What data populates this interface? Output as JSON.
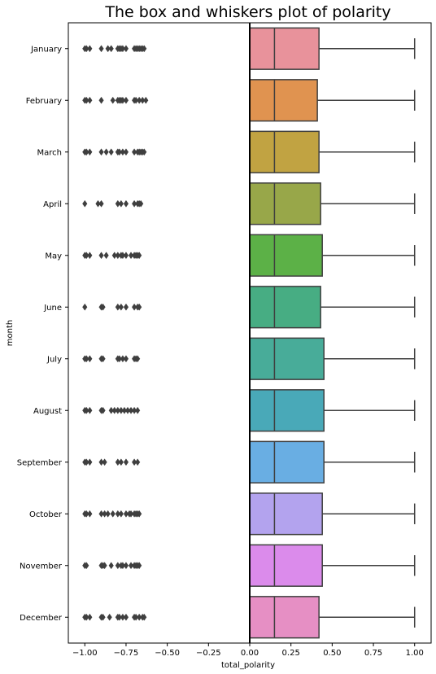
{
  "chart_data": {
    "type": "boxplot",
    "orientation": "horizontal",
    "title": "The box and whiskers plot of polarity",
    "xlabel": "total_polarity",
    "ylabel": "month",
    "xlim": [
      -1.1,
      1.1
    ],
    "x_ticks": [
      -1.0,
      -0.75,
      -0.5,
      -0.25,
      0.0,
      0.25,
      0.5,
      0.75,
      1.0
    ],
    "x_tick_labels": [
      "−1.00",
      "−0.75",
      "−0.50",
      "−0.25",
      "0.00",
      "0.25",
      "0.50",
      "0.75",
      "1.00"
    ],
    "reference_line_x": 0.0,
    "grid": false,
    "legend": "none",
    "series": [
      {
        "category": "January",
        "color": "#E8929B",
        "whislo": 0.0,
        "q1": 0.0,
        "med": 0.15,
        "q3": 0.42,
        "whishi": 1.0,
        "fliers": [
          -1.0,
          -0.99,
          -0.97,
          -0.9,
          -0.86,
          -0.84,
          -0.8,
          -0.79,
          -0.78,
          -0.77,
          -0.75,
          -0.7,
          -0.69,
          -0.68,
          -0.67,
          -0.66,
          -0.65,
          -0.64
        ]
      },
      {
        "category": "February",
        "color": "#E09350",
        "whislo": 0.0,
        "q1": 0.0,
        "med": 0.15,
        "q3": 0.41,
        "whishi": 1.0,
        "fliers": [
          -1.0,
          -0.99,
          -0.97,
          -0.9,
          -0.83,
          -0.8,
          -0.79,
          -0.78,
          -0.77,
          -0.75,
          -0.7,
          -0.69,
          -0.67,
          -0.65,
          -0.63
        ]
      },
      {
        "category": "March",
        "color": "#C1A342",
        "whislo": 0.0,
        "q1": 0.0,
        "med": 0.15,
        "q3": 0.42,
        "whishi": 1.0,
        "fliers": [
          -1.0,
          -0.99,
          -0.97,
          -0.9,
          -0.87,
          -0.84,
          -0.8,
          -0.79,
          -0.77,
          -0.75,
          -0.7,
          -0.68,
          -0.67,
          -0.66,
          -0.65,
          -0.64
        ]
      },
      {
        "category": "April",
        "color": "#98A749",
        "whislo": 0.0,
        "q1": 0.0,
        "med": 0.15,
        "q3": 0.43,
        "whishi": 1.0,
        "fliers": [
          -1.0,
          -0.92,
          -0.9,
          -0.8,
          -0.78,
          -0.75,
          -0.7,
          -0.68,
          -0.67,
          -0.66
        ]
      },
      {
        "category": "May",
        "color": "#5CB147",
        "whislo": 0.0,
        "q1": 0.0,
        "med": 0.15,
        "q3": 0.44,
        "whishi": 1.0,
        "fliers": [
          -1.0,
          -0.99,
          -0.97,
          -0.9,
          -0.87,
          -0.82,
          -0.8,
          -0.78,
          -0.77,
          -0.75,
          -0.72,
          -0.7,
          -0.69,
          -0.68,
          -0.67
        ]
      },
      {
        "category": "June",
        "color": "#47AD83",
        "whislo": 0.0,
        "q1": 0.0,
        "med": 0.15,
        "q3": 0.43,
        "whishi": 1.0,
        "fliers": [
          -1.0,
          -0.9,
          -0.89,
          -0.8,
          -0.78,
          -0.75,
          -0.7,
          -0.68,
          -0.67
        ]
      },
      {
        "category": "July",
        "color": "#48AC99",
        "whislo": 0.0,
        "q1": 0.0,
        "med": 0.15,
        "q3": 0.45,
        "whishi": 1.0,
        "fliers": [
          -1.0,
          -0.99,
          -0.97,
          -0.9,
          -0.89,
          -0.8,
          -0.79,
          -0.77,
          -0.75,
          -0.7,
          -0.69,
          -0.68
        ]
      },
      {
        "category": "August",
        "color": "#49A9B8",
        "whislo": 0.0,
        "q1": 0.0,
        "med": 0.15,
        "q3": 0.45,
        "whishi": 1.0,
        "fliers": [
          -1.0,
          -0.99,
          -0.97,
          -0.9,
          -0.89,
          -0.84,
          -0.82,
          -0.8,
          -0.78,
          -0.76,
          -0.74,
          -0.72,
          -0.7,
          -0.68
        ]
      },
      {
        "category": "September",
        "color": "#69AEE3",
        "whislo": 0.0,
        "q1": 0.0,
        "med": 0.15,
        "q3": 0.45,
        "whishi": 1.0,
        "fliers": [
          -1.0,
          -0.99,
          -0.97,
          -0.9,
          -0.88,
          -0.8,
          -0.78,
          -0.75,
          -0.7,
          -0.68
        ]
      },
      {
        "category": "October",
        "color": "#B3A3EE",
        "whislo": 0.0,
        "q1": 0.0,
        "med": 0.15,
        "q3": 0.44,
        "whishi": 1.0,
        "fliers": [
          -1.0,
          -0.99,
          -0.97,
          -0.9,
          -0.88,
          -0.86,
          -0.83,
          -0.8,
          -0.78,
          -0.75,
          -0.73,
          -0.72,
          -0.7,
          -0.69,
          -0.68,
          -0.67
        ]
      },
      {
        "category": "November",
        "color": "#DB8BEB",
        "whislo": 0.0,
        "q1": 0.0,
        "med": 0.15,
        "q3": 0.44,
        "whishi": 1.0,
        "fliers": [
          -1.0,
          -0.99,
          -0.9,
          -0.89,
          -0.88,
          -0.84,
          -0.8,
          -0.78,
          -0.77,
          -0.75,
          -0.72,
          -0.7,
          -0.69,
          -0.68,
          -0.67
        ]
      },
      {
        "category": "December",
        "color": "#E68FC4",
        "whislo": 0.0,
        "q1": 0.0,
        "med": 0.15,
        "q3": 0.42,
        "whishi": 1.0,
        "fliers": [
          -1.0,
          -0.99,
          -0.97,
          -0.9,
          -0.89,
          -0.85,
          -0.8,
          -0.79,
          -0.77,
          -0.75,
          -0.7,
          -0.69,
          -0.67,
          -0.65,
          -0.64
        ]
      }
    ]
  }
}
